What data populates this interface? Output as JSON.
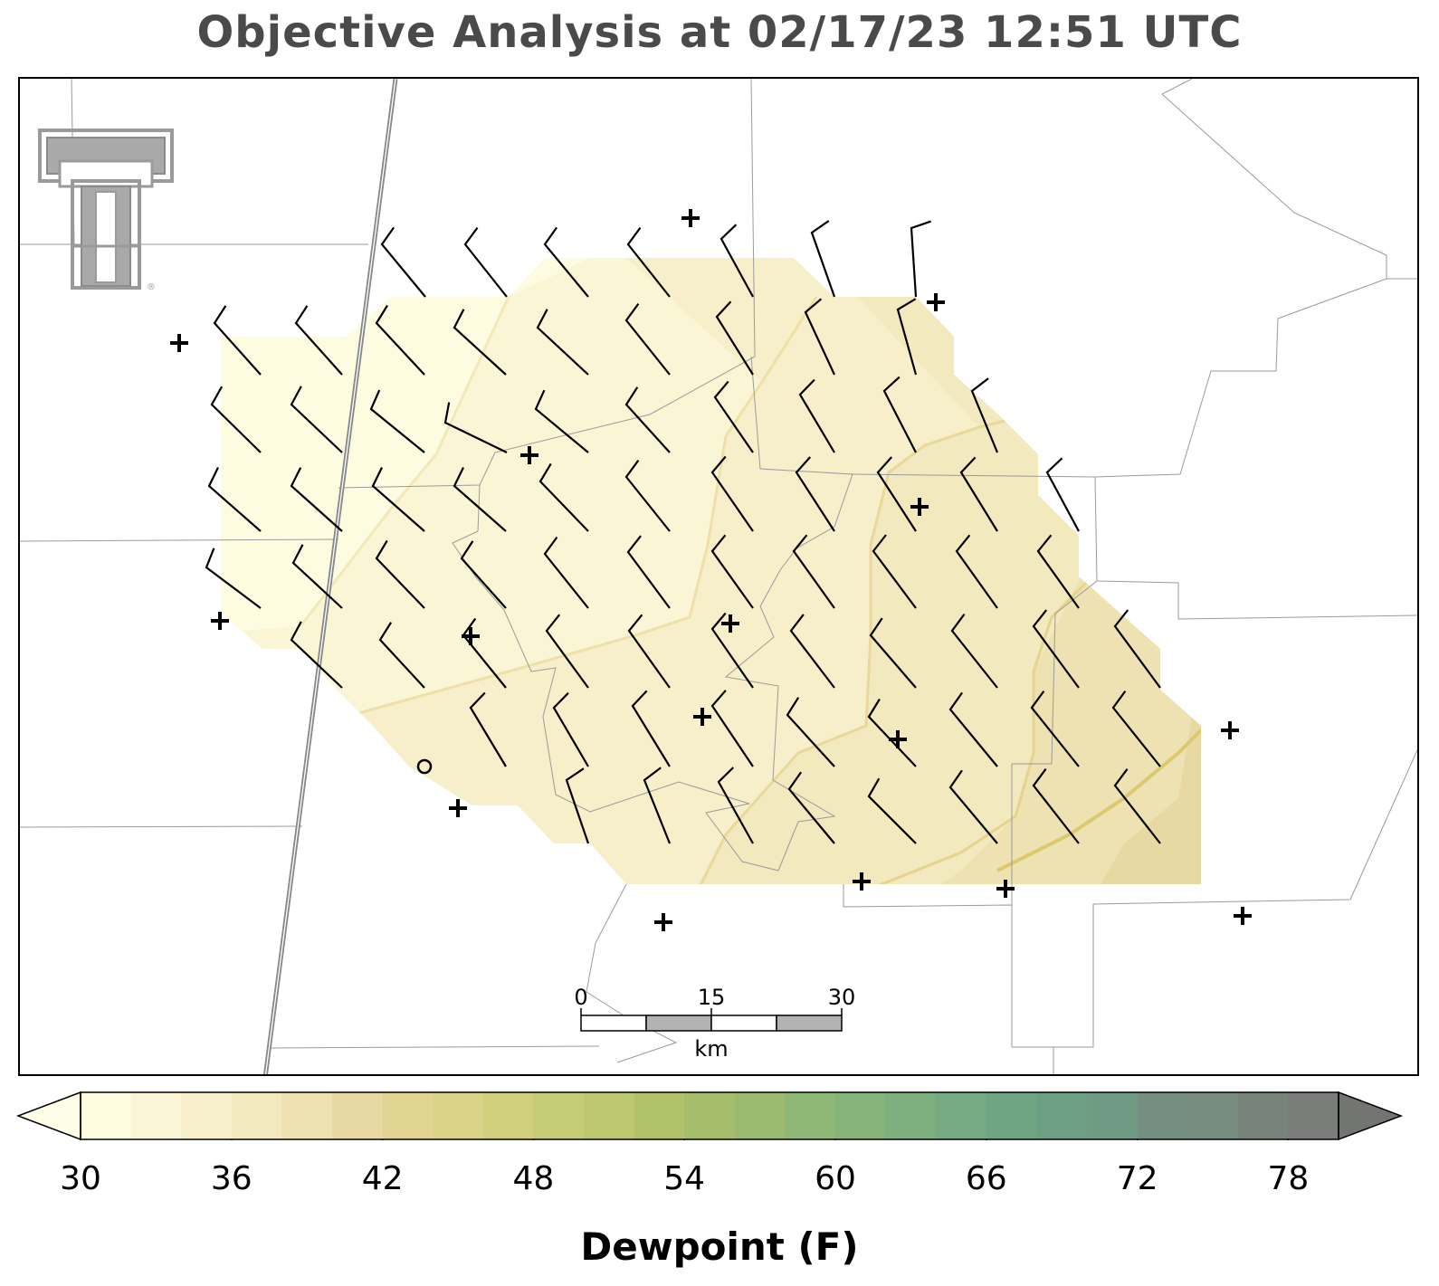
{
  "title": "Objective Analysis at 02/17/23 12:51 UTC",
  "colorbar": {
    "label": "Dewpoint (F)",
    "ticks": [
      "30",
      "36",
      "42",
      "48",
      "54",
      "60",
      "66",
      "72",
      "78"
    ],
    "min": 30,
    "max": 80,
    "step": 2,
    "extend": "both",
    "colors": [
      "#fdfbe0",
      "#faf6d5",
      "#f6efca",
      "#f2e9bf",
      "#eee2b2",
      "#e8d9a2",
      "#e2d594",
      "#d9d387",
      "#cfcf7c",
      "#c6cc74",
      "#bcc76e",
      "#b1c26b",
      "#a6bd6c",
      "#9bba70",
      "#8fb776",
      "#86b37a",
      "#7eaf7e",
      "#76aa82",
      "#70a584",
      "#6d9f85",
      "#6f9a84",
      "#748f82",
      "#778b7f",
      "#78837c",
      "#797c79"
    ],
    "under_color": "#fefde6",
    "over_color": "#737670"
  },
  "scale_bar": {
    "labels": [
      "0",
      "15",
      "30"
    ],
    "unit": "km"
  },
  "logo": "texas-tech-double-t-logo"
}
